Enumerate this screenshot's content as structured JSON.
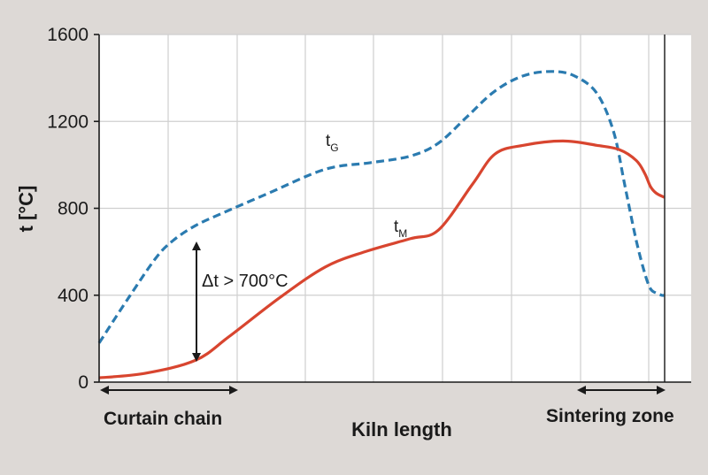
{
  "chart_data": {
    "type": "line",
    "xlabel": "Kiln length",
    "ylabel": "t [°C]",
    "ylim": [
      0,
      1600
    ],
    "xlim": [
      0,
      100
    ],
    "y_ticks": [
      "0",
      "400",
      "800",
      "1200",
      "1600"
    ],
    "grid": true,
    "colors": {
      "background": "#ddd9d6",
      "plot_background": "#ffffff",
      "gas": "#2b7bb0",
      "material": "#d8452f",
      "grid": "#cfcfcf",
      "axis": "#1a1a1a"
    },
    "series": [
      {
        "name": "tG",
        "label_main": "t",
        "label_sub": "G",
        "style": "dashed",
        "x": [
          0,
          5,
          10,
          13,
          17,
          22,
          30,
          40,
          48,
          55,
          60,
          65,
          70,
          75,
          80,
          84,
          88,
          91,
          93,
          95,
          96.5,
          97.5,
          98.5,
          99.5,
          100
        ],
        "y": [
          180,
          380,
          570,
          650,
          720,
          780,
          870,
          980,
          1010,
          1040,
          1100,
          1220,
          1340,
          1410,
          1430,
          1410,
          1330,
          1150,
          900,
          650,
          500,
          430,
          410,
          400,
          400
        ]
      },
      {
        "name": "tM",
        "label_main": "t",
        "label_sub": "M",
        "style": "solid",
        "x": [
          0,
          8,
          17,
          23,
          32,
          40,
          47,
          55,
          60,
          66,
          70,
          75,
          82,
          88,
          92,
          95,
          96.5,
          97.5,
          98.5,
          100
        ],
        "y": [
          20,
          40,
          100,
          210,
          390,
          530,
          600,
          660,
          700,
          910,
          1050,
          1090,
          1110,
          1090,
          1070,
          1020,
          960,
          900,
          870,
          850
        ]
      }
    ],
    "annotation": "Δt > 700°C",
    "regions": [
      "Curtain chain",
      "Sintering zone"
    ]
  }
}
